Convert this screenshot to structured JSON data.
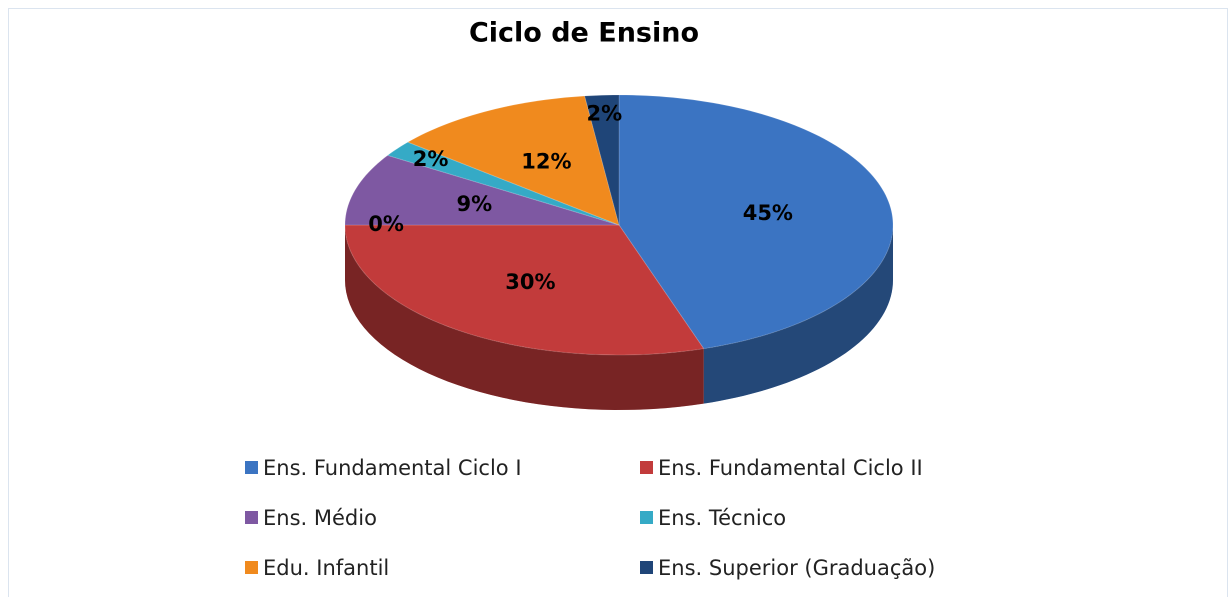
{
  "chart_data": {
    "type": "pie",
    "title": "Ciclo de Ensino",
    "categories": [
      "Ens. Fundamental Ciclo I",
      "Ens. Fundamental Ciclo II",
      null,
      "Ens. Médio",
      "Ens. Técnico",
      "Edu. Infantil",
      "Ens. Superior (Graduação)"
    ],
    "values": [
      45,
      30,
      0,
      9,
      2,
      12,
      2
    ],
    "value_labels": [
      "45%",
      "30%",
      "0%",
      "9%",
      "2%",
      "12%",
      "2%"
    ],
    "colors": [
      "#3b74c2",
      "#c23b3b",
      null,
      "#7e58a2",
      "#35aac6",
      "#f08a1e",
      "#1f4578"
    ],
    "legend": "bottom"
  }
}
